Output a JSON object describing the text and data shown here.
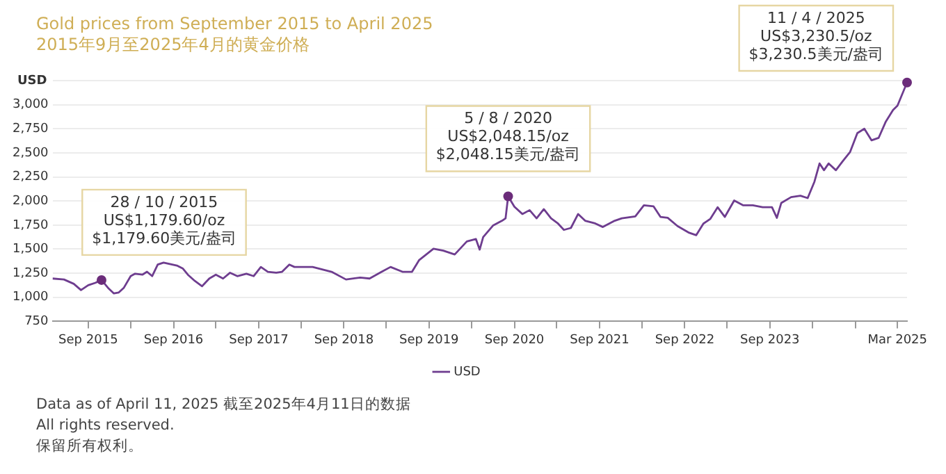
{
  "chart_data": {
    "type": "line",
    "title": "Gold prices from September 2015 to April 2025",
    "subtitle": "2015年9月至2025年4月的黄金价格",
    "ylabel": "USD",
    "x": [
      "2015-04-01",
      "2015-05-20",
      "2015-07-01",
      "2015-08-01",
      "2015-09-01",
      "2015-10-01",
      "2015-10-28",
      "2015-11-28",
      "2015-12-20",
      "2016-01-10",
      "2016-02-01",
      "2016-03-01",
      "2016-03-20",
      "2016-04-20",
      "2016-05-10",
      "2016-06-01",
      "2016-06-25",
      "2016-07-20",
      "2016-09-15",
      "2016-10-10",
      "2016-11-01",
      "2016-12-01",
      "2017-01-01",
      "2017-02-01",
      "2017-03-01",
      "2017-04-01",
      "2017-05-01",
      "2017-06-01",
      "2017-07-10",
      "2017-08-10",
      "2017-09-10",
      "2017-10-10",
      "2017-11-15",
      "2017-12-10",
      "2018-01-10",
      "2018-02-01",
      "2018-04-20",
      "2018-07-10",
      "2018-09-10",
      "2018-11-10",
      "2018-12-20",
      "2019-02-10",
      "2019-03-20",
      "2019-05-10",
      "2019-06-20",
      "2019-07-20",
      "2019-09-20",
      "2019-11-01",
      "2019-12-20",
      "2020-02-10",
      "2020-03-20",
      "2020-04-05",
      "2020-04-20",
      "2020-06-01",
      "2020-07-10",
      "2020-07-25",
      "2020-08-05",
      "2020-09-01",
      "2020-10-05",
      "2020-11-05",
      "2020-12-05",
      "2021-01-05",
      "2021-02-05",
      "2021-03-05",
      "2021-04-01",
      "2021-05-01",
      "2021-06-01",
      "2021-07-01",
      "2021-08-10",
      "2021-09-15",
      "2021-11-05",
      "2021-12-05",
      "2022-02-01",
      "2022-03-10",
      "2022-04-20",
      "2022-05-20",
      "2022-06-20",
      "2022-08-01",
      "2022-09-20",
      "2022-10-20",
      "2022-11-20",
      "2022-12-20",
      "2023-01-20",
      "2023-02-20",
      "2023-04-01",
      "2023-05-10",
      "2023-06-20",
      "2023-08-01",
      "2023-09-10",
      "2023-10-01",
      "2023-10-20",
      "2023-12-01",
      "2024-01-10",
      "2024-02-10",
      "2024-03-10",
      "2024-04-01",
      "2024-04-20",
      "2024-05-10",
      "2024-06-10",
      "2024-07-10",
      "2024-08-10",
      "2024-09-10",
      "2024-10-10",
      "2024-11-10",
      "2024-12-10",
      "2025-01-10",
      "2025-02-10",
      "2025-03-01",
      "2025-04-11"
    ],
    "series": [
      {
        "name": "USD",
        "color": "#6e3d8f",
        "values": [
          1195,
          1185,
          1140,
          1075,
          1125,
          1150,
          1179.6,
          1090,
          1040,
          1050,
          1100,
          1220,
          1245,
          1235,
          1265,
          1220,
          1340,
          1360,
          1330,
          1300,
          1235,
          1170,
          1115,
          1195,
          1235,
          1195,
          1255,
          1220,
          1245,
          1220,
          1315,
          1265,
          1255,
          1265,
          1340,
          1315,
          1315,
          1265,
          1185,
          1205,
          1195,
          1265,
          1315,
          1265,
          1265,
          1385,
          1505,
          1485,
          1445,
          1580,
          1605,
          1495,
          1625,
          1745,
          1795,
          1820,
          2048.15,
          1940,
          1865,
          1905,
          1820,
          1915,
          1820,
          1770,
          1700,
          1720,
          1865,
          1795,
          1770,
          1730,
          1795,
          1820,
          1840,
          1955,
          1945,
          1835,
          1825,
          1740,
          1670,
          1645,
          1765,
          1815,
          1935,
          1835,
          2005,
          1955,
          1955,
          1935,
          1935,
          1825,
          1980,
          2040,
          2055,
          2030,
          2200,
          2390,
          2320,
          2390,
          2320,
          2415,
          2510,
          2705,
          2750,
          2630,
          2655,
          2825,
          2945,
          2990,
          3230.5
        ]
      }
    ],
    "xlim": [
      "2015-04-01",
      "2025-04-11"
    ],
    "xticks": [
      {
        "value": "2015-09-01",
        "label": "Sep 2015"
      },
      {
        "value": "2016-03-01",
        "label": null
      },
      {
        "value": "2016-09-01",
        "label": "Sep 2016"
      },
      {
        "value": "2017-03-01",
        "label": null
      },
      {
        "value": "2017-09-01",
        "label": "Sep 2017"
      },
      {
        "value": "2018-03-01",
        "label": null
      },
      {
        "value": "2018-09-01",
        "label": "Sep 2018"
      },
      {
        "value": "2019-03-01",
        "label": null
      },
      {
        "value": "2019-09-01",
        "label": "Sep 2019"
      },
      {
        "value": "2020-03-01",
        "label": null
      },
      {
        "value": "2020-09-01",
        "label": "Sep 2020"
      },
      {
        "value": "2021-03-01",
        "label": null
      },
      {
        "value": "2021-09-01",
        "label": "Sep 2021"
      },
      {
        "value": "2022-03-01",
        "label": null
      },
      {
        "value": "2022-09-01",
        "label": "Sep 2022"
      },
      {
        "value": "2023-03-01",
        "label": null
      },
      {
        "value": "2023-09-01",
        "label": "Sep 2023"
      },
      {
        "value": "2024-03-01",
        "label": null
      },
      {
        "value": "2024-09-01",
        "label": null
      },
      {
        "value": "2025-03-01",
        "label": "Mar 2025"
      }
    ],
    "ylim": [
      750,
      3250
    ],
    "yticks": [
      750,
      {
        "value": 1000,
        "label": "1,000"
      },
      {
        "value": 1250,
        "label": "1,250"
      },
      {
        "value": 1500,
        "label": "1,500"
      },
      {
        "value": 1750,
        "label": "1,750"
      },
      {
        "value": 2000,
        "label": "2,000"
      },
      {
        "value": 2250,
        "label": "2,250"
      },
      {
        "value": 2500,
        "label": "2,500"
      },
      {
        "value": 2750,
        "label": "2,750"
      },
      {
        "value": 3000,
        "label": "3,000"
      },
      {
        "value": 3250,
        "label": null
      }
    ],
    "grid": "y",
    "legend": "bottom",
    "marker": "none",
    "line_style": "solid",
    "annotations": [
      {
        "text": "28 / 10 / 2015\nUS$1,179.60/oz\n$1,179.60美元/盎司",
        "x": "2015-10-28",
        "y": 1179.6
      },
      {
        "text": "5 / 8 / 2020\nUS$2,048.15/oz\n$2,048.15美元/盎司",
        "x": "2020-08-05",
        "y": 2048.15
      },
      {
        "text": "11 / 4 / 2025\nUS$3,230.5/oz\n$3,230.5美元/盎司",
        "x": "2025-04-11",
        "y": 3230.5
      },
      "Data as of April 11, 2025  截至2025年4月11日的数据",
      "All rights reserved.",
      "保留所有权利。"
    ]
  }
}
